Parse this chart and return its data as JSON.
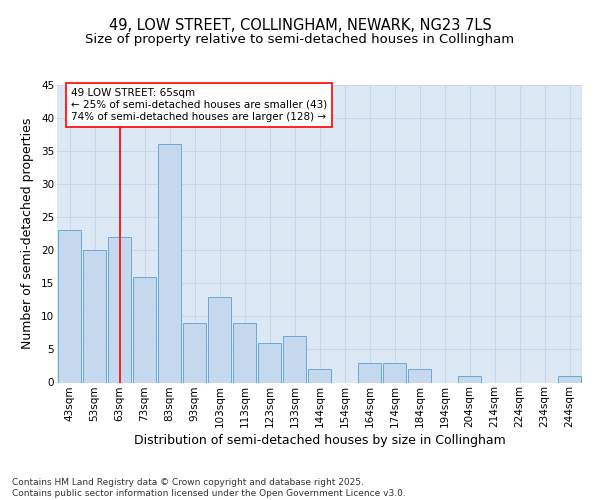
{
  "title_line1": "49, LOW STREET, COLLINGHAM, NEWARK, NG23 7LS",
  "title_line2": "Size of property relative to semi-detached houses in Collingham",
  "xlabel": "Distribution of semi-detached houses by size in Collingham",
  "ylabel": "Number of semi-detached properties",
  "categories": [
    "43sqm",
    "53sqm",
    "63sqm",
    "73sqm",
    "83sqm",
    "93sqm",
    "103sqm",
    "113sqm",
    "123sqm",
    "133sqm",
    "144sqm",
    "154sqm",
    "164sqm",
    "174sqm",
    "184sqm",
    "194sqm",
    "204sqm",
    "214sqm",
    "224sqm",
    "234sqm",
    "244sqm"
  ],
  "values": [
    23,
    20,
    22,
    16,
    36,
    9,
    13,
    9,
    6,
    7,
    2,
    0,
    3,
    3,
    2,
    0,
    1,
    0,
    0,
    0,
    1
  ],
  "bar_color": "#c5d8ee",
  "bar_edge_color": "#6aaad4",
  "grid_color": "#c8d8ec",
  "background_color": "#dce9f5",
  "annotation_box_text": "49 LOW STREET: 65sqm\n← 25% of semi-detached houses are smaller (43)\n74% of semi-detached houses are larger (128) →",
  "vline_x_index": 2,
  "ylim": [
    0,
    45
  ],
  "yticks": [
    0,
    5,
    10,
    15,
    20,
    25,
    30,
    35,
    40,
    45
  ],
  "footnote": "Contains HM Land Registry data © Crown copyright and database right 2025.\nContains public sector information licensed under the Open Government Licence v3.0.",
  "title_fontsize": 10.5,
  "subtitle_fontsize": 9.5,
  "axis_label_fontsize": 9,
  "tick_fontsize": 7.5,
  "annotation_fontsize": 7.5,
  "footnote_fontsize": 6.5
}
